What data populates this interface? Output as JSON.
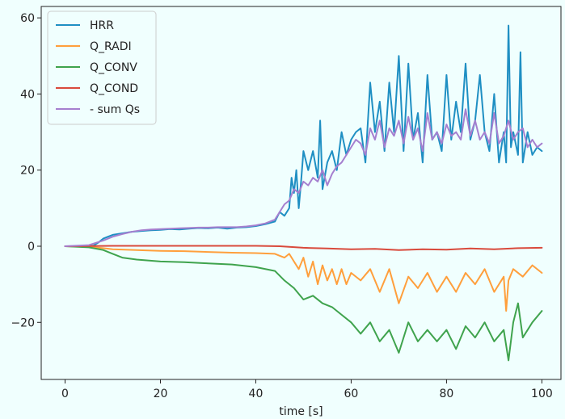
{
  "chart_data": {
    "type": "line",
    "title": "",
    "xlabel": "time [s]",
    "ylabel": "",
    "xlim": [
      -5,
      104
    ],
    "ylim": [
      -35,
      63
    ],
    "xticks": [
      0,
      20,
      40,
      60,
      80,
      100
    ],
    "yticks": [
      -20,
      0,
      20,
      40,
      60
    ],
    "grid": false,
    "legend_position": "top-left",
    "series": [
      {
        "name": "HRR",
        "color": "#1f8fc3",
        "x": [
          0,
          5,
          6,
          7,
          8,
          9,
          10,
          12,
          14,
          16,
          18,
          20,
          22,
          24,
          26,
          28,
          30,
          32,
          34,
          36,
          38,
          40,
          42,
          44,
          45,
          46,
          47,
          47.5,
          48,
          48.5,
          49,
          49.5,
          50,
          51,
          52,
          53,
          53.5,
          54,
          55,
          56,
          57,
          58,
          59,
          60,
          61,
          62,
          63,
          64,
          65,
          66,
          67,
          68,
          69,
          70,
          71,
          72,
          73,
          74,
          75,
          76,
          77,
          78,
          79,
          80,
          81,
          82,
          83,
          84,
          85,
          86,
          87,
          88,
          89,
          90,
          91,
          92,
          92.5,
          93,
          93.5,
          94,
          95,
          95.5,
          96,
          97,
          98,
          99,
          100
        ],
        "y": [
          0,
          0,
          0.2,
          1,
          2,
          2.5,
          3,
          3.4,
          3.8,
          4,
          4.2,
          4.3,
          4.5,
          4.4,
          4.6,
          4.8,
          4.7,
          4.9,
          4.6,
          4.9,
          5,
          5.3,
          5.8,
          6.5,
          9,
          8,
          10,
          18,
          14,
          20,
          10,
          17,
          25,
          20,
          25,
          18,
          33,
          15,
          22,
          25,
          20,
          30,
          24,
          28,
          30,
          31,
          22,
          43,
          30,
          38,
          25,
          43,
          30,
          50,
          25,
          48,
          28,
          35,
          22,
          45,
          28,
          30,
          25,
          45,
          28,
          38,
          30,
          48,
          28,
          33,
          45,
          30,
          25,
          40,
          22,
          30,
          22,
          58,
          26,
          30,
          24,
          51,
          22,
          30,
          24,
          26,
          25
        ]
      },
      {
        "name": "Q_RADI",
        "color": "#ff9f3c",
        "x": [
          0,
          5,
          8,
          10,
          15,
          20,
          25,
          30,
          35,
          40,
          44,
          45,
          46,
          47,
          48,
          49,
          50,
          51,
          52,
          53,
          54,
          55,
          56,
          57,
          58,
          59,
          60,
          62,
          64,
          66,
          68,
          70,
          72,
          74,
          76,
          78,
          80,
          82,
          84,
          86,
          88,
          90,
          92,
          92.5,
          93,
          94,
          96,
          98,
          100
        ],
        "y": [
          0,
          -0.2,
          -0.5,
          -0.8,
          -1,
          -1.2,
          -1.3,
          -1.5,
          -1.7,
          -1.8,
          -2,
          -2.5,
          -3,
          -2,
          -4,
          -6,
          -3,
          -8,
          -4,
          -10,
          -5,
          -9,
          -6,
          -10,
          -6,
          -10,
          -7,
          -9,
          -6,
          -12,
          -6,
          -15,
          -8,
          -11,
          -7,
          -12,
          -8,
          -12,
          -7,
          -10,
          -6,
          -12,
          -8,
          -17,
          -9,
          -6,
          -8,
          -5,
          -7
        ]
      },
      {
        "name": "Q_CONV",
        "color": "#3fa34d",
        "x": [
          0,
          5,
          8,
          10,
          12,
          15,
          20,
          25,
          30,
          35,
          40,
          44,
          46,
          48,
          50,
          52,
          54,
          56,
          58,
          60,
          62,
          64,
          66,
          68,
          70,
          72,
          74,
          76,
          78,
          80,
          82,
          84,
          86,
          88,
          90,
          92,
          93,
          94,
          95,
          96,
          98,
          100
        ],
        "y": [
          0,
          -0.3,
          -1,
          -2,
          -3,
          -3.5,
          -4,
          -4.2,
          -4.5,
          -4.8,
          -5.5,
          -6.5,
          -9,
          -11,
          -14,
          -13,
          -15,
          -16,
          -18,
          -20,
          -23,
          -20,
          -25,
          -22,
          -28,
          -20,
          -25,
          -22,
          -25,
          -22,
          -27,
          -21,
          -24,
          -20,
          -25,
          -22,
          -30,
          -20,
          -15,
          -24,
          -20,
          -17
        ]
      },
      {
        "name": "Q_COND",
        "color": "#d94a3c",
        "x": [
          0,
          10,
          20,
          30,
          40,
          45,
          50,
          55,
          60,
          65,
          70,
          75,
          80,
          85,
          90,
          95,
          100
        ],
        "y": [
          0,
          0.1,
          0.1,
          0.1,
          0.1,
          0,
          -0.4,
          -0.6,
          -0.8,
          -0.7,
          -1,
          -0.8,
          -0.9,
          -0.6,
          -0.8,
          -0.5,
          -0.4
        ]
      },
      {
        "name": "- sum Qs",
        "color": "#a57fcf",
        "x": [
          0,
          5,
          8,
          10,
          12,
          14,
          16,
          18,
          20,
          22,
          24,
          26,
          28,
          30,
          32,
          34,
          36,
          38,
          40,
          42,
          44,
          45,
          46,
          47,
          48,
          49,
          50,
          51,
          52,
          53,
          54,
          55,
          56,
          57,
          58,
          59,
          60,
          61,
          62,
          63,
          64,
          65,
          66,
          67,
          68,
          69,
          70,
          71,
          72,
          73,
          74,
          75,
          76,
          77,
          78,
          79,
          80,
          81,
          82,
          83,
          84,
          85,
          86,
          87,
          88,
          89,
          90,
          91,
          92,
          93,
          94,
          95,
          96,
          97,
          98,
          99,
          100
        ],
        "y": [
          0,
          0.3,
          1.5,
          2.5,
          3.2,
          3.8,
          4.2,
          4.4,
          4.5,
          4.6,
          4.7,
          4.8,
          4.9,
          4.9,
          5,
          5,
          5,
          5.2,
          5.5,
          6,
          7,
          9,
          11,
          12,
          15,
          14,
          17,
          16,
          18,
          17,
          20,
          16,
          19,
          21,
          22,
          24,
          26,
          28,
          27,
          24,
          31,
          28,
          33,
          26,
          31,
          29,
          33,
          27,
          34,
          28,
          31,
          25,
          35,
          28,
          30,
          27,
          32,
          29,
          30,
          28,
          36,
          29,
          33,
          28,
          30,
          27,
          35,
          27,
          29,
          33,
          28,
          30,
          31,
          26,
          28,
          26,
          27
        ]
      }
    ]
  }
}
